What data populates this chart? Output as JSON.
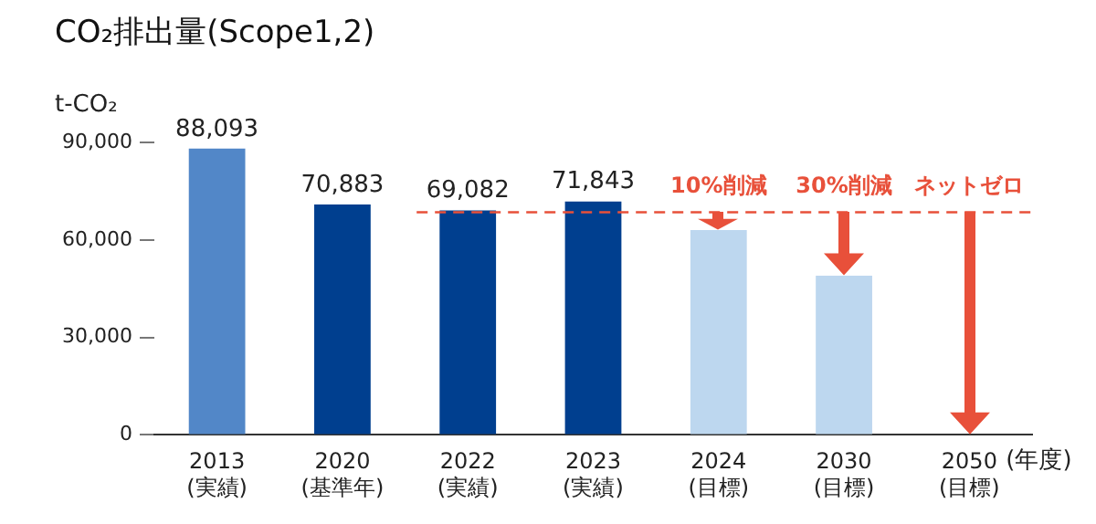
{
  "chart_data": {
    "type": "bar",
    "title": "CO₂排出量(Scope1,2)",
    "ylabel": "t-CO₂",
    "xlabel": "(年度)",
    "categories": [
      "2013\n(実績)",
      "2020\n(基準年)",
      "2022\n(実績)",
      "2023\n(実績)",
      "2024\n(目標)",
      "2030\n(目標)",
      "2050\n(目標)"
    ],
    "values": [
      88093,
      70883,
      69082,
      71843,
      63000,
      49000,
      0
    ],
    "colors": [
      "#5287c8",
      "#003f8f",
      "#003f8f",
      "#003f8f",
      "#bdd7ef",
      "#bdd7ef",
      "#bdd7ef"
    ],
    "value_labels": [
      "88,093",
      "70,883",
      "69,082",
      "71,843",
      null,
      null,
      null
    ],
    "ylim": [
      0,
      90000
    ],
    "yticks": [
      0,
      {
        "value": 30000,
        "label": "30,000"
      },
      {
        "value": 60000,
        "label": "60,000"
      },
      {
        "value": 90000,
        "label": "90,000"
      }
    ],
    "grid": false,
    "legend": false,
    "ref_lines": [
      {
        "axis": "y",
        "value": 68500,
        "color": "#e8503a",
        "line_style": "dashed"
      }
    ],
    "annotations": [
      "10%削減",
      "30%削減",
      "ネットゼロ"
    ]
  }
}
